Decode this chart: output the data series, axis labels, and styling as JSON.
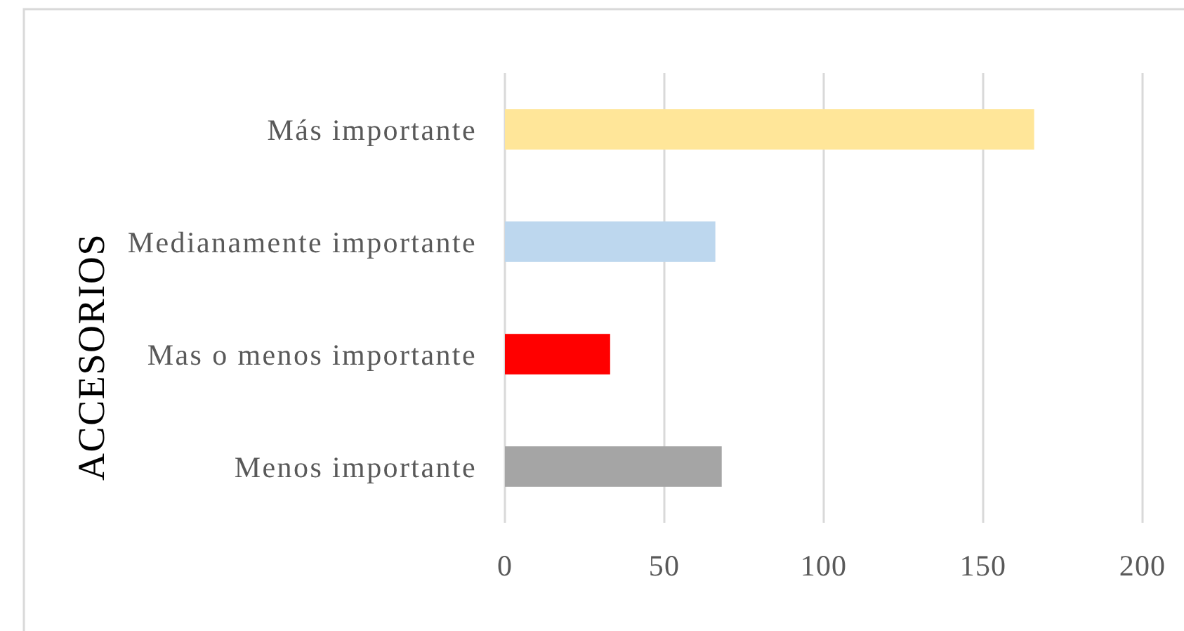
{
  "chart_data": {
    "type": "bar",
    "orientation": "horizontal",
    "ylabel": "ACCESORIOS",
    "categories": [
      "Más importante",
      "Medianamente importante",
      "Mas o menos importante",
      "Menos importante"
    ],
    "values": [
      166,
      66,
      33,
      68
    ],
    "colors": [
      "#ffe699",
      "#bdd7ee",
      "#ff0000",
      "#a5a5a5"
    ],
    "xlim": [
      0,
      200
    ],
    "xticks": [
      0,
      50,
      100,
      150,
      200
    ],
    "grid": "x"
  }
}
